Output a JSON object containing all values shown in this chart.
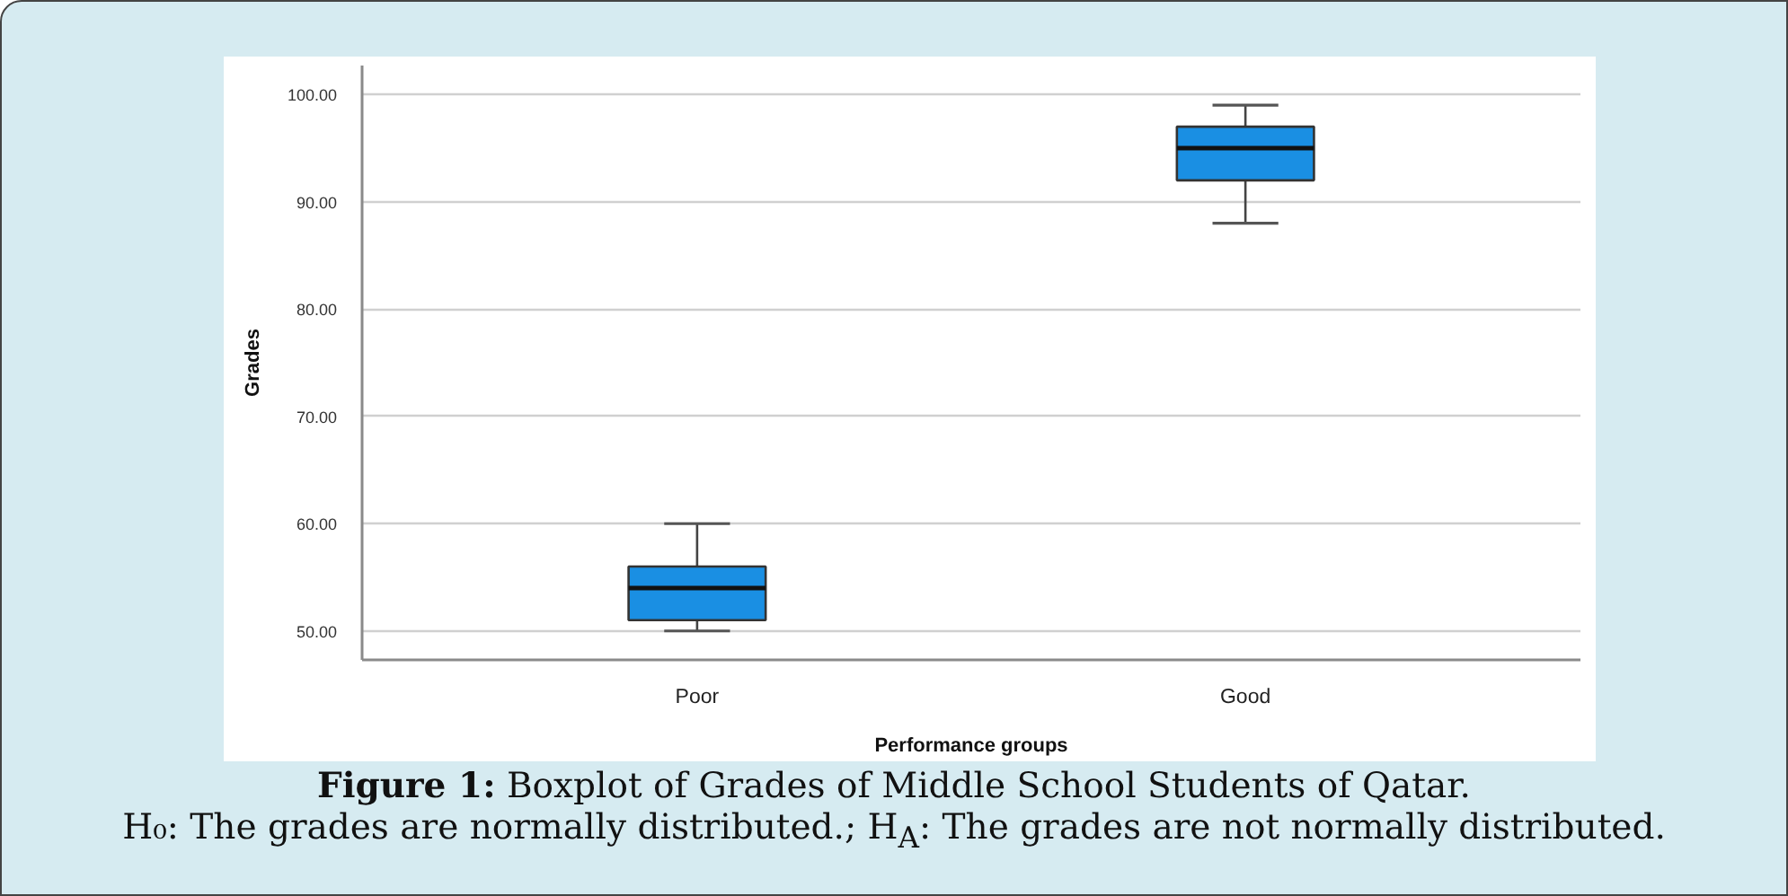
{
  "chart_data": {
    "type": "box",
    "categories": [
      "Poor",
      "Good"
    ],
    "boxes": [
      {
        "low": 50,
        "q1": 51,
        "median": 54,
        "q3": 56,
        "high": 60
      },
      {
        "low": 88,
        "q1": 92,
        "median": 95,
        "q3": 97,
        "high": 99
      }
    ],
    "colors": [
      "#1a8fe3",
      "#1a8fe3"
    ],
    "xlabel": "Performance groups",
    "ylabel": "Grades",
    "ylim": [
      47.3,
      102.7
    ],
    "yticks": [
      {
        "value": 50,
        "label": "50.00"
      },
      {
        "value": 60,
        "label": "60.00"
      },
      {
        "value": 70,
        "label": "70.00"
      },
      {
        "value": 80,
        "label": "80.00"
      },
      {
        "value": 90,
        "label": "90.00"
      },
      {
        "value": 100,
        "label": "100.00"
      }
    ],
    "grid": "y",
    "annotations": [
      "Figure 1: Boxplot of Grades of Middle School Students of Qatar.",
      "H₀: The grades are normally distributed.; H$_{A}$: The grades are not normally distributed."
    ]
  }
}
